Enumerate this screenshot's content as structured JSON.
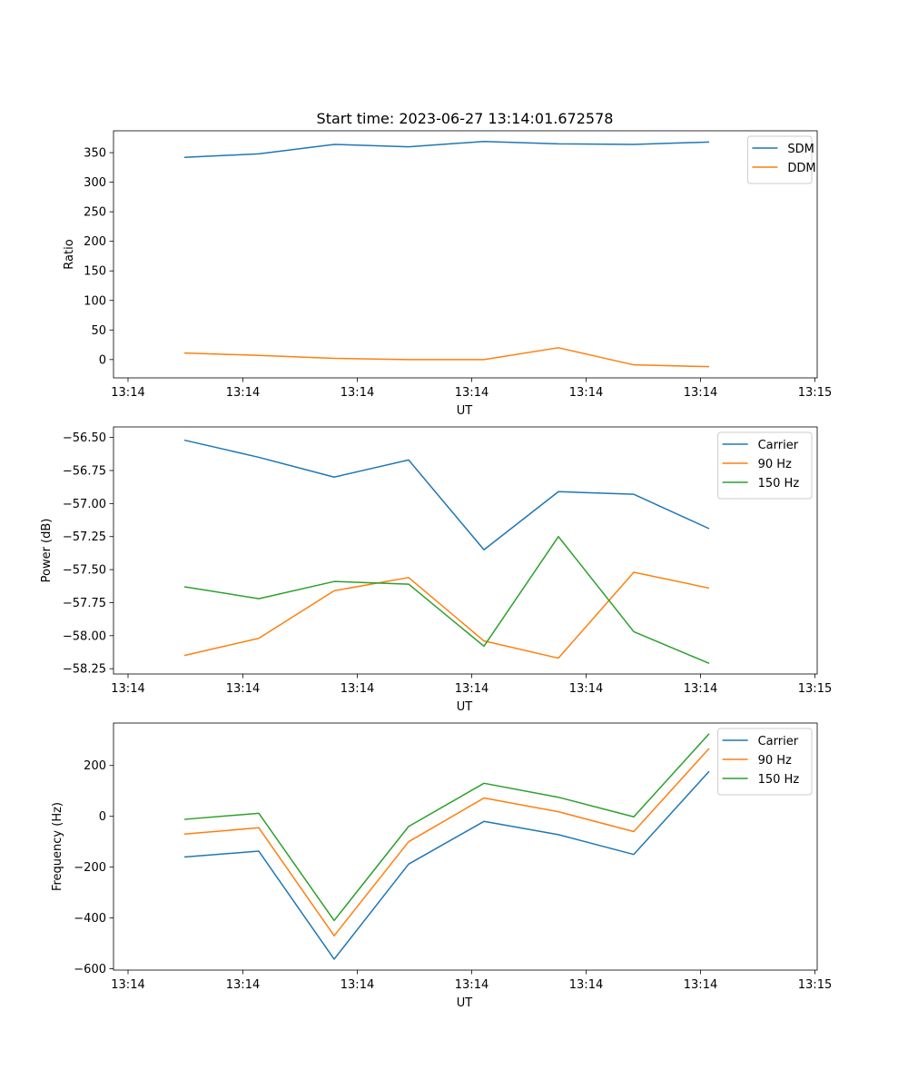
{
  "title": "Start time: 2023-06-27 13:14:01.672578",
  "chart_data": [
    {
      "type": "line",
      "xlabel": "UT",
      "ylabel": "Ratio",
      "x_tick_labels": [
        "13:14",
        "13:14",
        "13:14",
        "13:14",
        "13:14",
        "13:14",
        "13:15"
      ],
      "y_ticks": [
        0,
        50,
        100,
        150,
        200,
        250,
        300,
        350
      ],
      "y_tick_labels": [
        "0",
        "50",
        "100",
        "150",
        "200",
        "250",
        "300",
        "350"
      ],
      "ylim": [
        -31,
        387
      ],
      "legend": "top-right",
      "grid": false,
      "series": [
        {
          "name": "SDM",
          "color": "#1f77b4",
          "values": [
            342,
            348,
            364,
            360,
            369,
            365,
            364,
            368
          ]
        },
        {
          "name": "DDM",
          "color": "#ff7f0e",
          "values": [
            11,
            7,
            2,
            0,
            0,
            20,
            -9,
            -12
          ]
        }
      ]
    },
    {
      "type": "line",
      "xlabel": "UT",
      "ylabel": "Power (dB)",
      "x_tick_labels": [
        "13:14",
        "13:14",
        "13:14",
        "13:14",
        "13:14",
        "13:14",
        "13:15"
      ],
      "y_ticks": [
        -58.25,
        -58.0,
        -57.75,
        -57.5,
        -57.25,
        -57.0,
        -56.75,
        -56.5
      ],
      "y_tick_labels": [
        "−58.25",
        "−58.00",
        "−57.75",
        "−57.50",
        "−57.25",
        "−57.00",
        "−56.75",
        "−56.50"
      ],
      "ylim": [
        -58.29,
        -56.42
      ],
      "legend": "top-right",
      "grid": false,
      "series": [
        {
          "name": "Carrier",
          "color": "#1f77b4",
          "values": [
            -56.52,
            -56.65,
            -56.8,
            -56.67,
            -57.35,
            -56.91,
            -56.93,
            -57.19
          ]
        },
        {
          "name": "90 Hz",
          "color": "#ff7f0e",
          "values": [
            -58.15,
            -58.02,
            -57.66,
            -57.56,
            -58.04,
            -58.17,
            -57.52,
            -57.64
          ]
        },
        {
          "name": "150 Hz",
          "color": "#2ca02c",
          "values": [
            -57.63,
            -57.72,
            -57.59,
            -57.61,
            -58.08,
            -57.25,
            -57.97,
            -58.21
          ]
        }
      ]
    },
    {
      "type": "line",
      "xlabel": "UT",
      "ylabel": "Frequency (Hz)",
      "x_tick_labels": [
        "13:14",
        "13:14",
        "13:14",
        "13:14",
        "13:14",
        "13:14",
        "13:15"
      ],
      "y_ticks": [
        -600,
        -400,
        -200,
        0,
        200
      ],
      "y_tick_labels": [
        "−600",
        "−400",
        "−200",
        "0",
        "200"
      ],
      "ylim": [
        -605,
        367
      ],
      "legend": "top-right",
      "grid": false,
      "series": [
        {
          "name": "Carrier",
          "color": "#1f77b4",
          "values": [
            -160,
            -137,
            -562,
            -188,
            -20,
            -72,
            -150,
            177
          ]
        },
        {
          "name": "90 Hz",
          "color": "#ff7f0e",
          "values": [
            -70,
            -45,
            -470,
            -100,
            72,
            18,
            -60,
            267
          ]
        },
        {
          "name": "150 Hz",
          "color": "#2ca02c",
          "values": [
            -12,
            12,
            -410,
            -40,
            130,
            75,
            -2,
            325
          ]
        }
      ]
    }
  ]
}
